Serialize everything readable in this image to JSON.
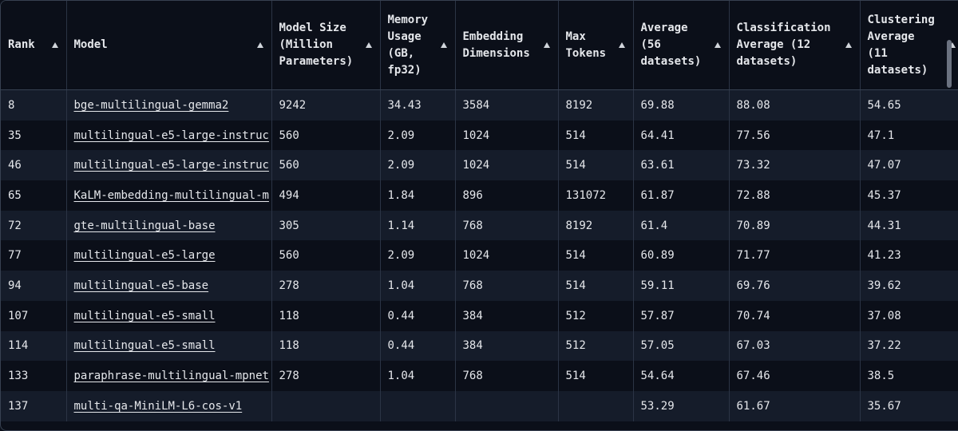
{
  "table": {
    "headers": [
      "Rank",
      "Model",
      "Model Size (Million Parameters)",
      "Memory Usage (GB, fp32)",
      "Embedding Dimensions",
      "Max Tokens",
      "Average (56 datasets)",
      "Classification Average (12 datasets)",
      "Clustering Average (11 datasets)"
    ],
    "rows": [
      [
        "8",
        "bge-multilingual-gemma2",
        "9242",
        "34.43",
        "3584",
        "8192",
        "69.88",
        "88.08",
        "54.65"
      ],
      [
        "35",
        "multilingual-e5-large-instruc",
        "560",
        "2.09",
        "1024",
        "514",
        "64.41",
        "77.56",
        "47.1"
      ],
      [
        "46",
        "multilingual-e5-large-instruc",
        "560",
        "2.09",
        "1024",
        "514",
        "63.61",
        "73.32",
        "47.07"
      ],
      [
        "65",
        "KaLM-embedding-multilingual-m",
        "494",
        "1.84",
        "896",
        "131072",
        "61.87",
        "72.88",
        "45.37"
      ],
      [
        "72",
        "gte-multilingual-base",
        "305",
        "1.14",
        "768",
        "8192",
        "61.4",
        "70.89",
        "44.31"
      ],
      [
        "77",
        "multilingual-e5-large",
        "560",
        "2.09",
        "1024",
        "514",
        "60.89",
        "71.77",
        "41.23"
      ],
      [
        "94",
        "multilingual-e5-base",
        "278",
        "1.04",
        "768",
        "514",
        "59.11",
        "69.76",
        "39.62"
      ],
      [
        "107",
        "multilingual-e5-small",
        "118",
        "0.44",
        "384",
        "512",
        "57.87",
        "70.74",
        "37.08"
      ],
      [
        "114",
        "multilingual-e5-small",
        "118",
        "0.44",
        "384",
        "512",
        "57.05",
        "67.03",
        "37.22"
      ],
      [
        "133",
        "paraphrase-multilingual-mpnet",
        "278",
        "1.04",
        "768",
        "514",
        "54.64",
        "67.46",
        "38.5"
      ],
      [
        "137",
        "multi-qa-MiniLM-L6-cos-v1",
        null,
        null,
        null,
        null,
        "53.29",
        "61.67",
        "35.67"
      ]
    ]
  }
}
